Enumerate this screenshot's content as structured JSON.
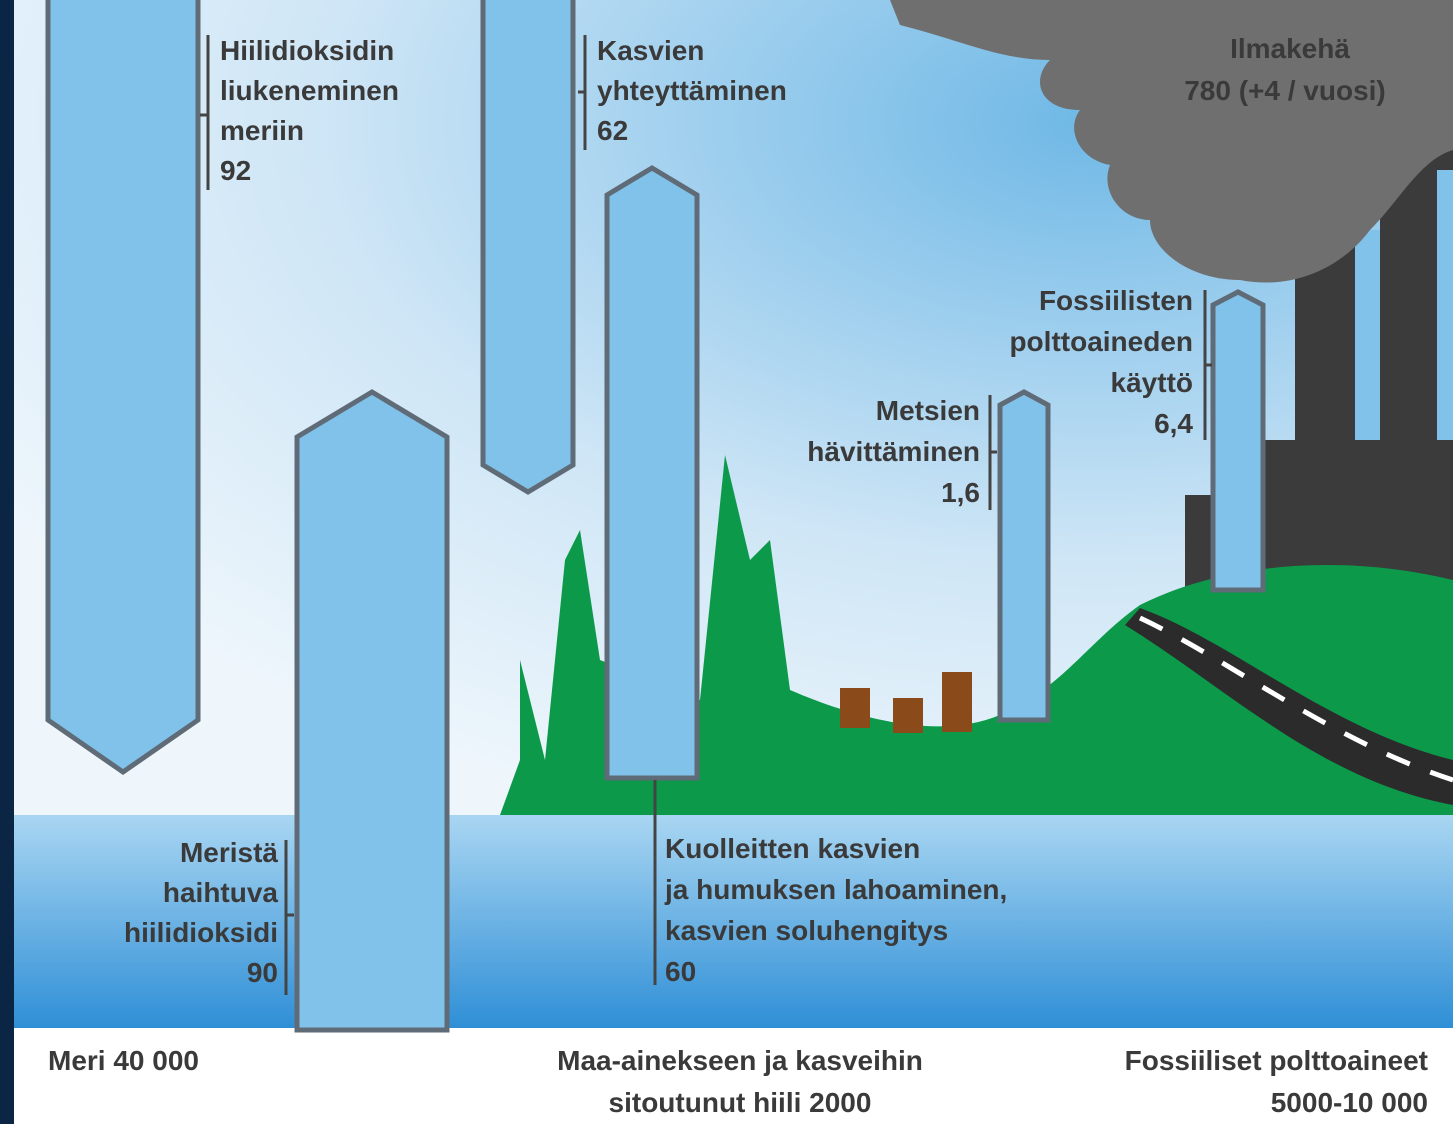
{
  "atmosphere": {
    "name": "Ilmakehä",
    "value": "780 (+4 / vuosi)"
  },
  "flows": [
    {
      "label": [
        "Hiilidioksidin",
        "liukeneminen",
        "meriin"
      ],
      "value": 92
    },
    {
      "label": [
        "Kasvien",
        "yhteyttäminen"
      ],
      "value": 62
    },
    {
      "label": [
        "Fossiilisten",
        "polttoaineden",
        "käyttö"
      ],
      "value": "6,4"
    },
    {
      "label": [
        "Metsien",
        "hävittäminen"
      ],
      "value": "1,6"
    },
    {
      "label": [
        "Meristä",
        "haihtuva",
        "hiilidioksidi"
      ],
      "value": 90
    },
    {
      "label": [
        "Kuolleitten kasvien",
        "ja humuksen lahoaminen,",
        "kasvien soluhengitys"
      ],
      "value": 60
    }
  ],
  "reservoirs": [
    {
      "label": [
        "Meri 40 000"
      ]
    },
    {
      "label": [
        "Maa-ainekseen ja kasveihin",
        "sitoutunut hiili 2000"
      ]
    },
    {
      "label": [
        "Fossiiliset polttoaineet",
        "5000-10 000"
      ]
    }
  ]
}
